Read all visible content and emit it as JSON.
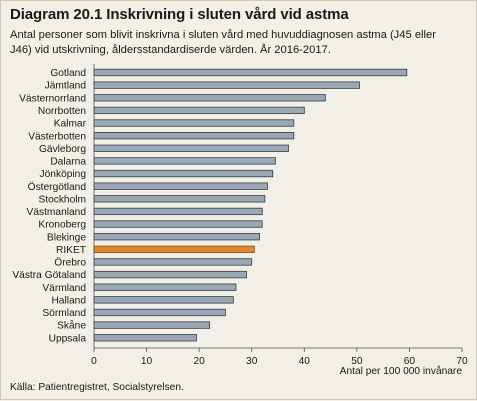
{
  "page": {
    "title": "Diagram 20.1 Inskrivning i sluten vård vid astma",
    "subtitle": "Antal personer som blivit inskrivna i sluten vård med huvuddiagnosen astma (J45 eller J46) vid utskrivning, åldersstandardiserde värden. År 2016-2017.",
    "source": "Källa: Patientregistret, Socialstyrelsen."
  },
  "colors": {
    "bar": "#9aa8b4",
    "bar_stroke": "#2f3f4c",
    "highlight": "#e08a2c",
    "highlight_stroke": "#8a4c0e",
    "axis": "#555555",
    "background": "#f1efe6"
  },
  "chart_data": {
    "type": "bar",
    "orientation": "horizontal",
    "categories": [
      "Gotland",
      "Jämtland",
      "Västernorrland",
      "Norrbotten",
      "Kalmar",
      "Västerbotten",
      "Gävleborg",
      "Dalarna",
      "Jönköping",
      "Östergötland",
      "Stockholm",
      "Västmanland",
      "Kronoberg",
      "Blekinge",
      "RIKET",
      "Örebro",
      "Västra Götaland",
      "Värmland",
      "Halland",
      "Sörmland",
      "Skåne",
      "Uppsala"
    ],
    "values": [
      59.5,
      50.5,
      44.0,
      40.0,
      38.0,
      38.0,
      37.0,
      34.5,
      34.0,
      33.0,
      32.5,
      32.0,
      32.0,
      31.5,
      30.5,
      30.0,
      29.0,
      27.0,
      26.5,
      25.0,
      22.0,
      19.5
    ],
    "highlight_category": "RIKET",
    "xlabel": "Antal per 100 000 invånare",
    "ylabel": "",
    "xlim": [
      0,
      70
    ],
    "xticks": [
      0,
      10,
      20,
      30,
      40,
      50,
      60,
      70
    ],
    "grid": false,
    "legend": "none"
  }
}
